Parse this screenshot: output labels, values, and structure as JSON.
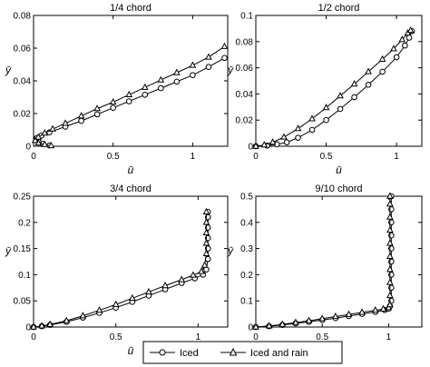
{
  "chart_data": [
    {
      "type": "line",
      "title": "1/4 chord",
      "xlabel": "ū",
      "ylabel": "ȳ",
      "xlim": [
        0,
        1.22
      ],
      "ylim": [
        0,
        0.08
      ],
      "x_ticks": [
        0,
        0.5,
        1
      ],
      "y_ticks": [
        0,
        0.02,
        0.04,
        0.06,
        0.08
      ],
      "x_tick_labels": [
        "0",
        "0.5",
        "1"
      ],
      "y_tick_labels": [
        "0",
        "0.02",
        "0.04",
        "0.06",
        "0.08"
      ],
      "grid": false,
      "series": [
        {
          "name": "Iced",
          "marker": "circle",
          "points": [
            [
              0.1,
              0.0005
            ],
            [
              0.06,
              0.0015
            ],
            [
              0.03,
              0.003
            ],
            [
              0.02,
              0.005
            ],
            [
              0.05,
              0.0065
            ],
            [
              0.1,
              0.0085
            ],
            [
              0.2,
              0.012
            ],
            [
              0.3,
              0.0155
            ],
            [
              0.4,
              0.0195
            ],
            [
              0.5,
              0.0235
            ],
            [
              0.6,
              0.0275
            ],
            [
              0.7,
              0.0315
            ],
            [
              0.8,
              0.0355
            ],
            [
              0.9,
              0.0395
            ],
            [
              1.0,
              0.0435
            ],
            [
              1.1,
              0.0485
            ],
            [
              1.2,
              0.054
            ]
          ]
        },
        {
          "name": "Iced and rain",
          "marker": "triangle",
          "points": [
            [
              0.11,
              0.0003
            ],
            [
              0.07,
              0.001
            ],
            [
              0.03,
              0.002
            ],
            [
              0.01,
              0.0035
            ],
            [
              0.03,
              0.0055
            ],
            [
              0.07,
              0.008
            ],
            [
              0.12,
              0.0105
            ],
            [
              0.2,
              0.014
            ],
            [
              0.3,
              0.0185
            ],
            [
              0.4,
              0.023
            ],
            [
              0.5,
              0.027
            ],
            [
              0.6,
              0.0315
            ],
            [
              0.7,
              0.036
            ],
            [
              0.8,
              0.0405
            ],
            [
              0.9,
              0.045
            ],
            [
              1.0,
              0.0495
            ],
            [
              1.1,
              0.0545
            ],
            [
              1.2,
              0.061
            ]
          ]
        }
      ]
    },
    {
      "type": "line",
      "title": "1/2 chord",
      "xlabel": "ū",
      "ylabel": "ȳ",
      "xlim": [
        0,
        1.18
      ],
      "ylim": [
        0,
        0.1
      ],
      "x_ticks": [
        0,
        0.5,
        1
      ],
      "y_ticks": [
        0,
        0.02,
        0.04,
        0.06,
        0.08,
        0.1
      ],
      "x_tick_labels": [
        "0",
        "0.5",
        "1"
      ],
      "y_tick_labels": [
        "0",
        "0.02",
        "0.04",
        "0.06",
        "0.08",
        "0.1"
      ],
      "grid": false,
      "series": [
        {
          "name": "Iced",
          "marker": "circle",
          "points": [
            [
              0.0,
              0.0
            ],
            [
              0.08,
              0.0005
            ],
            [
              0.15,
              0.0015
            ],
            [
              0.22,
              0.003
            ],
            [
              0.3,
              0.0065
            ],
            [
              0.4,
              0.0125
            ],
            [
              0.5,
              0.02
            ],
            [
              0.6,
              0.0285
            ],
            [
              0.7,
              0.0375
            ],
            [
              0.8,
              0.047
            ],
            [
              0.9,
              0.057
            ],
            [
              1.0,
              0.068
            ],
            [
              1.06,
              0.077
            ],
            [
              1.09,
              0.083
            ],
            [
              1.11,
              0.088
            ]
          ]
        },
        {
          "name": "Iced and rain",
          "marker": "triangle",
          "points": [
            [
              0.0,
              0.0
            ],
            [
              0.06,
              0.001
            ],
            [
              0.12,
              0.003
            ],
            [
              0.2,
              0.007
            ],
            [
              0.3,
              0.0135
            ],
            [
              0.4,
              0.021
            ],
            [
              0.5,
              0.0295
            ],
            [
              0.6,
              0.0385
            ],
            [
              0.7,
              0.0475
            ],
            [
              0.8,
              0.057
            ],
            [
              0.9,
              0.0665
            ],
            [
              0.98,
              0.0745
            ],
            [
              1.04,
              0.0815
            ],
            [
              1.08,
              0.0865
            ],
            [
              1.1,
              0.0885
            ]
          ]
        }
      ]
    },
    {
      "type": "line",
      "title": "3/4 chord",
      "xlabel": "ū",
      "ylabel": "ȳ",
      "xlim": [
        0,
        1.18
      ],
      "ylim": [
        0,
        0.25
      ],
      "x_ticks": [
        0,
        0.5,
        1
      ],
      "y_ticks": [
        0,
        0.05,
        0.1,
        0.15,
        0.2,
        0.25
      ],
      "x_tick_labels": [
        "0",
        "0.5",
        "1"
      ],
      "y_tick_labels": [
        "0",
        "0.05",
        "0.1",
        "0.15",
        "0.2",
        "0.25"
      ],
      "grid": false,
      "series": [
        {
          "name": "Iced",
          "marker": "circle",
          "points": [
            [
              0.0,
              0.0
            ],
            [
              0.05,
              0.0015
            ],
            [
              0.1,
              0.004
            ],
            [
              0.2,
              0.01
            ],
            [
              0.3,
              0.018
            ],
            [
              0.4,
              0.027
            ],
            [
              0.5,
              0.037
            ],
            [
              0.6,
              0.048
            ],
            [
              0.7,
              0.06
            ],
            [
              0.8,
              0.072
            ],
            [
              0.9,
              0.084
            ],
            [
              0.98,
              0.093
            ],
            [
              1.03,
              0.1
            ],
            [
              1.05,
              0.11
            ],
            [
              1.06,
              0.13
            ],
            [
              1.06,
              0.15
            ],
            [
              1.06,
              0.17
            ],
            [
              1.06,
              0.19
            ],
            [
              1.06,
              0.21
            ],
            [
              1.06,
              0.22
            ]
          ]
        },
        {
          "name": "Iced and rain",
          "marker": "triangle",
          "points": [
            [
              0.0,
              0.0
            ],
            [
              0.05,
              0.002
            ],
            [
              0.1,
              0.005
            ],
            [
              0.2,
              0.012
            ],
            [
              0.3,
              0.0215
            ],
            [
              0.4,
              0.032
            ],
            [
              0.5,
              0.043
            ],
            [
              0.6,
              0.055
            ],
            [
              0.7,
              0.067
            ],
            [
              0.8,
              0.079
            ],
            [
              0.9,
              0.0905
            ],
            [
              0.97,
              0.099
            ],
            [
              1.02,
              0.106
            ],
            [
              1.04,
              0.118
            ],
            [
              1.05,
              0.14
            ],
            [
              1.05,
              0.16
            ],
            [
              1.05,
              0.18
            ],
            [
              1.05,
              0.2
            ],
            [
              1.05,
              0.22
            ]
          ]
        }
      ]
    },
    {
      "type": "line",
      "title": "9/10 chord",
      "xlabel": "ū",
      "ylabel": "ȳ",
      "xlim": [
        0,
        1.25
      ],
      "ylim": [
        0,
        0.5
      ],
      "x_ticks": [
        0,
        0.5,
        1
      ],
      "y_ticks": [
        0,
        0.1,
        0.2,
        0.3,
        0.4,
        0.5
      ],
      "x_tick_labels": [
        "0",
        "0.5",
        "1"
      ],
      "y_tick_labels": [
        "0",
        "0.1",
        "0.2",
        "0.3",
        "0.4",
        "0.5"
      ],
      "grid": false,
      "series": [
        {
          "name": "Iced",
          "marker": "circle",
          "points": [
            [
              0.0,
              0.0
            ],
            [
              0.1,
              0.003
            ],
            [
              0.2,
              0.008
            ],
            [
              0.3,
              0.014
            ],
            [
              0.4,
              0.02
            ],
            [
              0.5,
              0.027
            ],
            [
              0.6,
              0.034
            ],
            [
              0.7,
              0.042
            ],
            [
              0.8,
              0.05
            ],
            [
              0.9,
              0.058
            ],
            [
              0.97,
              0.065
            ],
            [
              1.0,
              0.07
            ],
            [
              1.01,
              0.08
            ],
            [
              1.02,
              0.1
            ],
            [
              1.02,
              0.15
            ],
            [
              1.02,
              0.2
            ],
            [
              1.02,
              0.25
            ],
            [
              1.02,
              0.3
            ],
            [
              1.02,
              0.35
            ],
            [
              1.02,
              0.4
            ],
            [
              1.02,
              0.45
            ],
            [
              1.02,
              0.5
            ]
          ]
        },
        {
          "name": "Iced and rain",
          "marker": "triangle",
          "points": [
            [
              0.0,
              0.0
            ],
            [
              0.1,
              0.004
            ],
            [
              0.2,
              0.01
            ],
            [
              0.3,
              0.017
            ],
            [
              0.4,
              0.024
            ],
            [
              0.5,
              0.032
            ],
            [
              0.6,
              0.04
            ],
            [
              0.7,
              0.048
            ],
            [
              0.8,
              0.056
            ],
            [
              0.9,
              0.064
            ],
            [
              0.96,
              0.069
            ],
            [
              1.0,
              0.074
            ],
            [
              1.01,
              0.085
            ],
            [
              1.01,
              0.12
            ],
            [
              1.01,
              0.17
            ],
            [
              1.01,
              0.22
            ],
            [
              1.01,
              0.27
            ],
            [
              1.01,
              0.32
            ],
            [
              1.01,
              0.37
            ],
            [
              1.01,
              0.42
            ],
            [
              1.01,
              0.47
            ],
            [
              1.01,
              0.5
            ]
          ]
        }
      ]
    }
  ],
  "legend": {
    "placement": "bottom-center",
    "items": [
      {
        "label": "Iced",
        "marker": "circle"
      },
      {
        "label": "Iced and rain",
        "marker": "triangle"
      }
    ]
  }
}
